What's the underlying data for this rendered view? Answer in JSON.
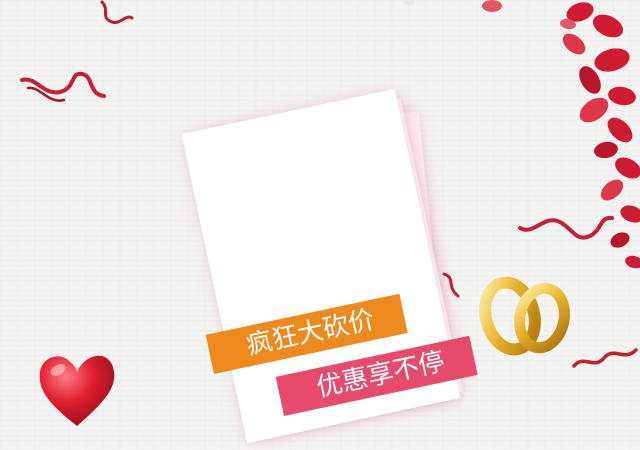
{
  "banners": {
    "line1": "疯狂大砍价",
    "line2": "优惠享不停"
  },
  "colors": {
    "orange_banner": "#ee8a1d",
    "pink_banner": "#e64b6c",
    "rose": "#d01c33",
    "gold": "#e8b32a"
  },
  "icons": [
    "heart-icon",
    "gold-rings-icon",
    "rose-petals",
    "ribbon-curl"
  ]
}
